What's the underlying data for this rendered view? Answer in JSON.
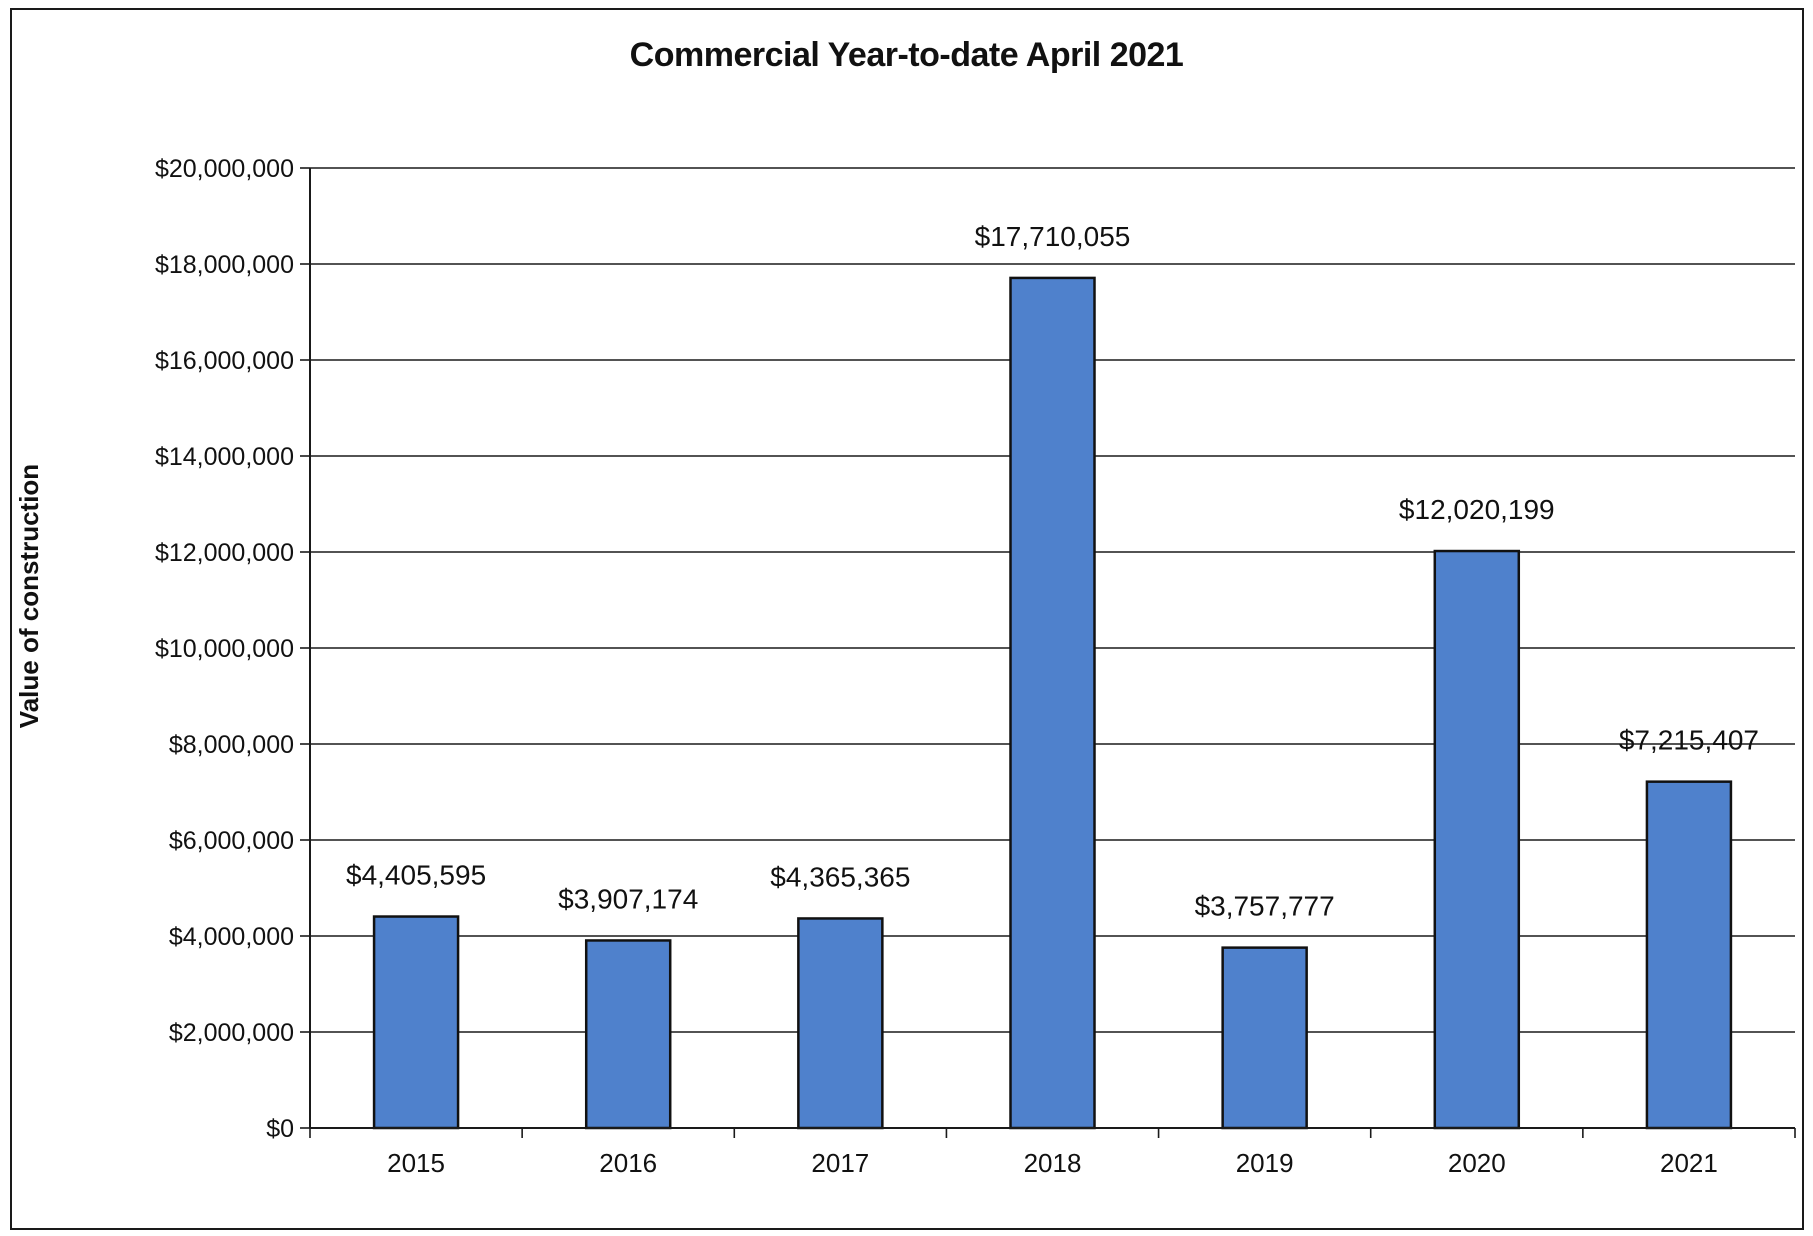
{
  "chart_data": {
    "type": "bar",
    "title": "Commercial Year-to-date April 2021",
    "xlabel": "",
    "ylabel": "Value of construction",
    "categories": [
      "2015",
      "2016",
      "2017",
      "2018",
      "2019",
      "2020",
      "2021"
    ],
    "values": [
      4405595,
      3907174,
      4365365,
      17710055,
      3757777,
      12020199,
      7215407
    ],
    "data_labels": [
      "$4,405,595",
      "$3,907,174",
      "$4,365,365",
      "$17,710,055",
      "$3,757,777",
      "$12,020,199",
      "$7,215,407"
    ],
    "ylim": [
      0,
      20000000
    ],
    "y_ticks": [
      0,
      2000000,
      4000000,
      6000000,
      8000000,
      10000000,
      12000000,
      14000000,
      16000000,
      18000000,
      20000000
    ],
    "y_tick_labels": [
      "$0",
      "$2,000,000",
      "$4,000,000",
      "$6,000,000",
      "$8,000,000",
      "$10,000,000",
      "$12,000,000",
      "$14,000,000",
      "$16,000,000",
      "$18,000,000",
      "$20,000,000"
    ],
    "grid": true,
    "legend": "none",
    "colors": {
      "bar_fill": "#4f81cc",
      "bar_stroke": "#111111",
      "gridline": "#1a1a1a",
      "axis": "#1a1a1a"
    }
  }
}
